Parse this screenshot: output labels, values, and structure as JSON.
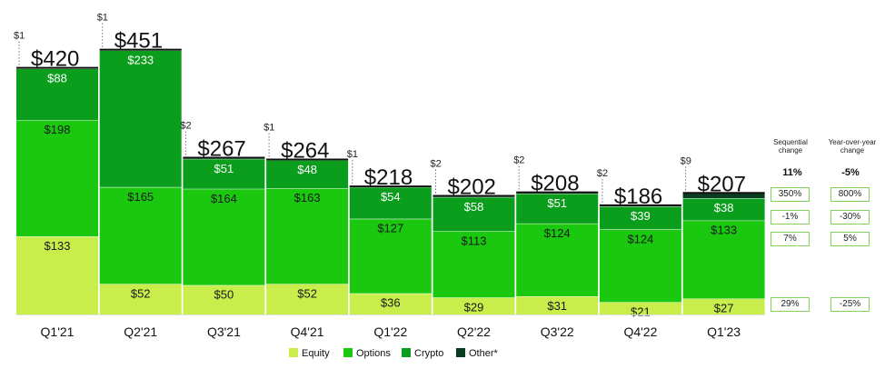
{
  "chart_data": {
    "type": "bar",
    "stacked": true,
    "categories": [
      "Q1'21",
      "Q2'21",
      "Q3'21",
      "Q4'21",
      "Q1'22",
      "Q2'22",
      "Q3'22",
      "Q4'22",
      "Q1'23"
    ],
    "totals": [
      "$420",
      "$451",
      "$267",
      "$264",
      "$218",
      "$202",
      "$208",
      "$186",
      "$207"
    ],
    "total_values": [
      420,
      451,
      267,
      264,
      218,
      202,
      208,
      186,
      207
    ],
    "series": [
      {
        "name": "Equity",
        "color": "#c9ee4c",
        "values": [
          133,
          52,
          50,
          52,
          36,
          29,
          31,
          21,
          27
        ],
        "labels": [
          "$133",
          "$52",
          "$50",
          "$52",
          "$36",
          "$29",
          "$31",
          "$21",
          "$27"
        ]
      },
      {
        "name": "Options",
        "color": "#19c80f",
        "values": [
          198,
          165,
          164,
          163,
          127,
          113,
          124,
          124,
          133
        ],
        "labels": [
          "$198",
          "$165",
          "$164",
          "$163",
          "$127",
          "$113",
          "$124",
          "$124",
          "$133"
        ]
      },
      {
        "name": "Crypto",
        "color": "#0a9e1c",
        "values": [
          88,
          233,
          51,
          48,
          54,
          58,
          51,
          39,
          38
        ],
        "labels": [
          "$88",
          "$233",
          "$51",
          "$48",
          "$54",
          "$58",
          "$51",
          "$39",
          "$38"
        ]
      },
      {
        "name": "Other*",
        "color": "#0a3d1d",
        "values": [
          1,
          1,
          2,
          1,
          1,
          2,
          2,
          2,
          9
        ],
        "labels": [
          "$1",
          "$1",
          "$2",
          "$1",
          "$1",
          "$2",
          "$2",
          "$2",
          "$9"
        ]
      }
    ],
    "legend_position": "bottom"
  },
  "side_panel": {
    "sequential_header": "Sequential change",
    "yoy_header": "Year-over-year change",
    "sequential_total": "11%",
    "yoy_total": "-5%",
    "sequential": {
      "other": "350%",
      "crypto": "-1%",
      "options": "7%",
      "equity": "29%"
    },
    "yoy": {
      "other": "800%",
      "crypto": "-30%",
      "options": "5%",
      "equity": "-25%"
    }
  }
}
